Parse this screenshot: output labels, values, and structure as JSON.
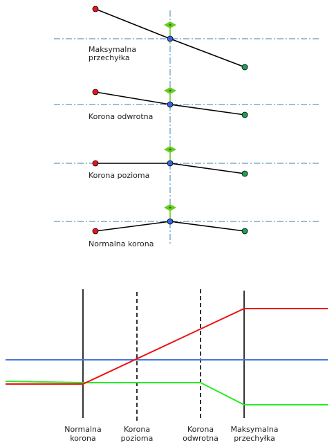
{
  "upper_diagrams": [
    {
      "id": "max-superelevation",
      "label_lines": [
        "Maksymalna",
        "przechyłka"
      ]
    },
    {
      "id": "reverse-crown",
      "label_lines": [
        "Korona odwrotna"
      ]
    },
    {
      "id": "level-crown",
      "label_lines": [
        "Korona pozioma"
      ]
    },
    {
      "id": "normal-crown",
      "label_lines": [
        "Normalna korona"
      ]
    }
  ],
  "station_labels": [
    {
      "id": "normal-crown",
      "lines": [
        "Normalna",
        "korona"
      ]
    },
    {
      "id": "level-crown",
      "lines": [
        "Korona",
        "pozioma"
      ]
    },
    {
      "id": "reverse-crown",
      "lines": [
        "Korona",
        "odwrotna"
      ]
    },
    {
      "id": "max-superelevation",
      "lines": [
        "Maksymalna",
        "przechyłka"
      ]
    }
  ],
  "colors": {
    "left_edge": "#e8141c",
    "right_edge": "#1aa050",
    "centerline_point": "#3366dd",
    "profile_centerline": "#4477dd",
    "profile_left": "#ee1111",
    "profile_right": "#22ee22",
    "pivot_marker": "#66cc22",
    "axis_dashdot": "#3a7fb0"
  }
}
